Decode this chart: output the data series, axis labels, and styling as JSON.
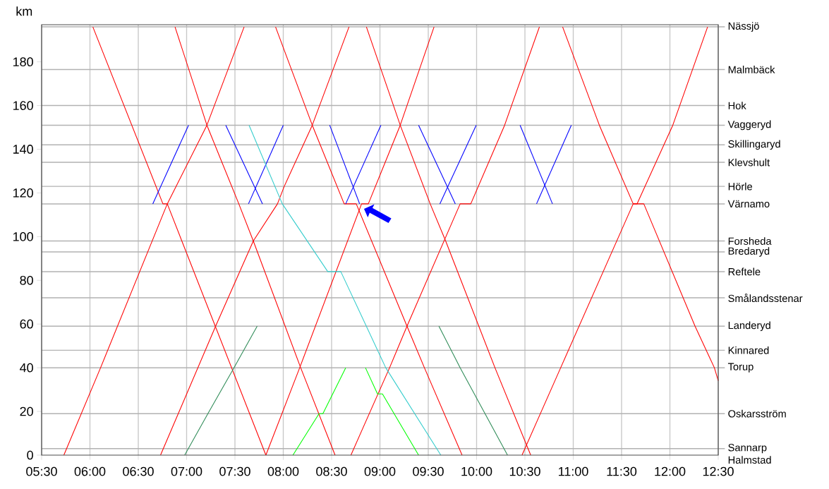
{
  "chart_data": {
    "type": "line",
    "ylabel": "km",
    "xlim": [
      5.5,
      12.5
    ],
    "ylim": [
      0,
      197
    ],
    "xticks": [
      {
        "value": 5.5,
        "label": "05:30"
      },
      {
        "value": 6,
        "label": "06:00"
      },
      {
        "value": 6.5,
        "label": "06:30"
      },
      {
        "value": 7,
        "label": "07:00"
      },
      {
        "value": 7.5,
        "label": "07:30"
      },
      {
        "value": 8,
        "label": "08:00"
      },
      {
        "value": 8.5,
        "label": "08:30"
      },
      {
        "value": 9,
        "label": "09:00"
      },
      {
        "value": 9.5,
        "label": "09:30"
      },
      {
        "value": 10,
        "label": "10:00"
      },
      {
        "value": 10.5,
        "label": "10:30"
      },
      {
        "value": 11,
        "label": "11:00"
      },
      {
        "value": 11.5,
        "label": "11:30"
      },
      {
        "value": 12,
        "label": "12:00"
      },
      {
        "value": 12.5,
        "label": "12:30"
      }
    ],
    "yticks": [
      0,
      20,
      40,
      60,
      80,
      100,
      120,
      140,
      160,
      180
    ],
    "grid": "x",
    "ref_lines": [
      {
        "axis": "y",
        "value": 196,
        "label": "Nässjö"
      },
      {
        "axis": "y",
        "value": 176.5,
        "label": "Malmbäck"
      },
      {
        "axis": "y",
        "value": 160,
        "label": "Hok"
      },
      {
        "axis": "y",
        "value": 151,
        "label": "Vaggeryd"
      },
      {
        "axis": "y",
        "value": 142,
        "label": "Skillingaryd"
      },
      {
        "axis": "y",
        "value": 134,
        "label": "Klevshult"
      },
      {
        "axis": "y",
        "value": 123,
        "label": "Hörle"
      },
      {
        "axis": "y",
        "value": 115,
        "label": "Värnamo"
      },
      {
        "axis": "y",
        "value": 98,
        "label": "Forsheda"
      },
      {
        "axis": "y",
        "value": 93,
        "label": "Bredaryd"
      },
      {
        "axis": "y",
        "value": 84,
        "label": "Reftele"
      },
      {
        "axis": "y",
        "value": 72,
        "label": "Smålandsstenar"
      },
      {
        "axis": "y",
        "value": 59,
        "label": "Landeryd"
      },
      {
        "axis": "y",
        "value": 48,
        "label": "Kinnared"
      },
      {
        "axis": "y",
        "value": 40,
        "label": "Torup"
      },
      {
        "axis": "y",
        "value": 19,
        "label": "Oskarsström"
      },
      {
        "axis": "y",
        "value": 3,
        "label": "Sannarp"
      }
    ],
    "annotations": [
      "Halmstad"
    ],
    "series": [
      {
        "color": "#ff0000",
        "x": [
          6.03,
          6.755,
          6.8,
          7.82
        ],
        "values": [
          196,
          115,
          115,
          0
        ]
      },
      {
        "color": "#ff0000",
        "x": [
          5.73,
          6.11,
          6.8,
          7.21,
          7.595
        ],
        "values": [
          0,
          40,
          115,
          151,
          196
        ]
      },
      {
        "color": "#ff0000",
        "x": [
          6.88,
          7.21,
          7.54,
          7.69,
          8.18,
          8.536
        ],
        "values": [
          196,
          151,
          115,
          98,
          40,
          0
        ]
      },
      {
        "color": "#ff0000",
        "x": [
          6.73,
          7.3,
          7.69,
          7.94,
          8.01,
          8.3,
          8.68
        ],
        "values": [
          0,
          59,
          98,
          115,
          123,
          151,
          196
        ]
      },
      {
        "color": "#ff0000",
        "x": [
          7.92,
          8.3,
          8.63,
          8.755,
          9.28,
          9.46,
          9.85
        ],
        "values": [
          196,
          151,
          115,
          115,
          59,
          40,
          0
        ]
      },
      {
        "color": "#ff0000",
        "x": [
          7.82,
          8.17,
          8.81,
          8.88,
          9.21,
          9.56
        ],
        "values": [
          0,
          40,
          115,
          115,
          151,
          196
        ]
      },
      {
        "color": "#ff0000",
        "x": [
          8.7,
          9.1,
          9.28,
          9.83,
          9.94,
          10.29,
          10.65
        ],
        "values": [
          0,
          40,
          59,
          115,
          115,
          151,
          196
        ]
      },
      {
        "color": "#ff0000",
        "x": [
          8.86,
          9.21,
          9.52,
          9.68,
          10.19,
          10.56
        ],
        "values": [
          196,
          151,
          115,
          98,
          40,
          0
        ]
      },
      {
        "color": "#ff0000",
        "x": [
          10.47,
          10.87,
          11.62,
          11.66,
          12.03,
          12.39
        ],
        "values": [
          0,
          40,
          115,
          115,
          151,
          196
        ]
      },
      {
        "color": "#ff0000",
        "x": [
          10.89,
          11.27,
          11.62,
          11.73,
          12.26,
          12.46,
          12.5
        ],
        "values": [
          196,
          151,
          115,
          115,
          59,
          40,
          34
        ]
      },
      {
        "color": "#0000ff",
        "x": [
          6.65,
          7.02
        ],
        "values": [
          115,
          151
        ]
      },
      {
        "color": "#0000ff",
        "x": [
          7.405,
          7.785
        ],
        "values": [
          151,
          115
        ]
      },
      {
        "color": "#0000ff",
        "x": [
          7.64,
          8.0
        ],
        "values": [
          115,
          151
        ]
      },
      {
        "color": "#0000ff",
        "x": [
          8.48,
          8.79
        ],
        "values": [
          151,
          115
        ]
      },
      {
        "color": "#0000ff",
        "x": [
          8.646,
          9.01
        ],
        "values": [
          115,
          151
        ]
      },
      {
        "color": "#0000ff",
        "x": [
          9.4,
          9.78
        ],
        "values": [
          151,
          115
        ]
      },
      {
        "color": "#0000ff",
        "x": [
          9.62,
          9.996
        ],
        "values": [
          115,
          151
        ]
      },
      {
        "color": "#0000ff",
        "x": [
          10.45,
          10.785
        ],
        "values": [
          151,
          115
        ]
      },
      {
        "color": "#0000ff",
        "x": [
          10.62,
          10.98
        ],
        "values": [
          115,
          151
        ]
      },
      {
        "color": "#33cccc",
        "x": [
          7.646,
          7.99,
          8.46,
          8.595,
          9.06,
          9.63
        ],
        "values": [
          151,
          115,
          84,
          84,
          40,
          0
        ]
      },
      {
        "color": "#2e8b57",
        "x": [
          6.98,
          7.22,
          7.49,
          7.73
        ],
        "values": [
          0,
          19,
          40,
          59
        ]
      },
      {
        "color": "#2e8b57",
        "x": [
          9.61,
          9.83,
          10.32
        ],
        "values": [
          59,
          40,
          0
        ]
      },
      {
        "color": "#00ff00",
        "x": [
          8.1,
          8.37,
          8.41,
          8.646
        ],
        "values": [
          0,
          19,
          19,
          40
        ]
      },
      {
        "color": "#00ff00",
        "x": [
          8.85,
          8.975,
          9.026,
          9.4
        ],
        "values": [
          40,
          28,
          28,
          0
        ]
      }
    ]
  }
}
